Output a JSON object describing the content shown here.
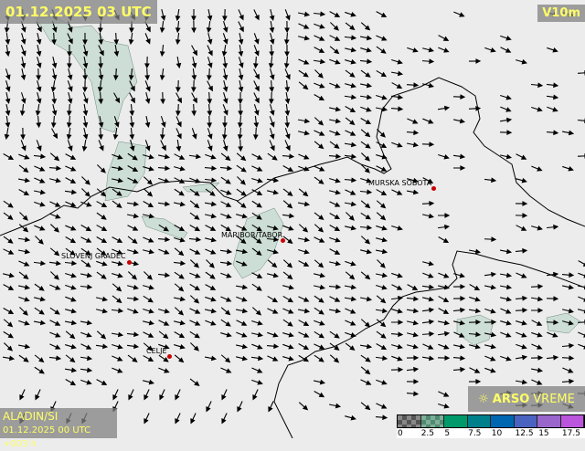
{
  "header": {
    "timestamp": "01.12.2025 03 UTC",
    "variable": "V10m"
  },
  "footer": {
    "model": "ALADIN/SI",
    "run": "01.12.2025 00 UTC +003 h",
    "brand_bold": "ARSO",
    "brand_light": "VREME",
    "brand_icon": "sun-umbrella-icon"
  },
  "legend": {
    "unit_ticks": [
      "0",
      "2.5",
      "5",
      "7.5",
      "10",
      "12.5",
      "15",
      "17.5"
    ],
    "colors": [
      "checker-dark",
      "checker-green",
      "#00996a",
      "#00808a",
      "#0066b0",
      "#4a62c0",
      "#9966cc",
      "#bb55dd"
    ]
  },
  "cities": [
    {
      "name": "MURSKA SOBOTA"
    },
    {
      "name": "MARIBOR/TABOR"
    },
    {
      "name": "SLOVENJ GRADEC"
    },
    {
      "name": "CELJE"
    }
  ],
  "colors": {
    "shade": "#c8dcd2",
    "border": "#000000",
    "label_text": "#ffff66",
    "city_dot": "#cc0000"
  }
}
